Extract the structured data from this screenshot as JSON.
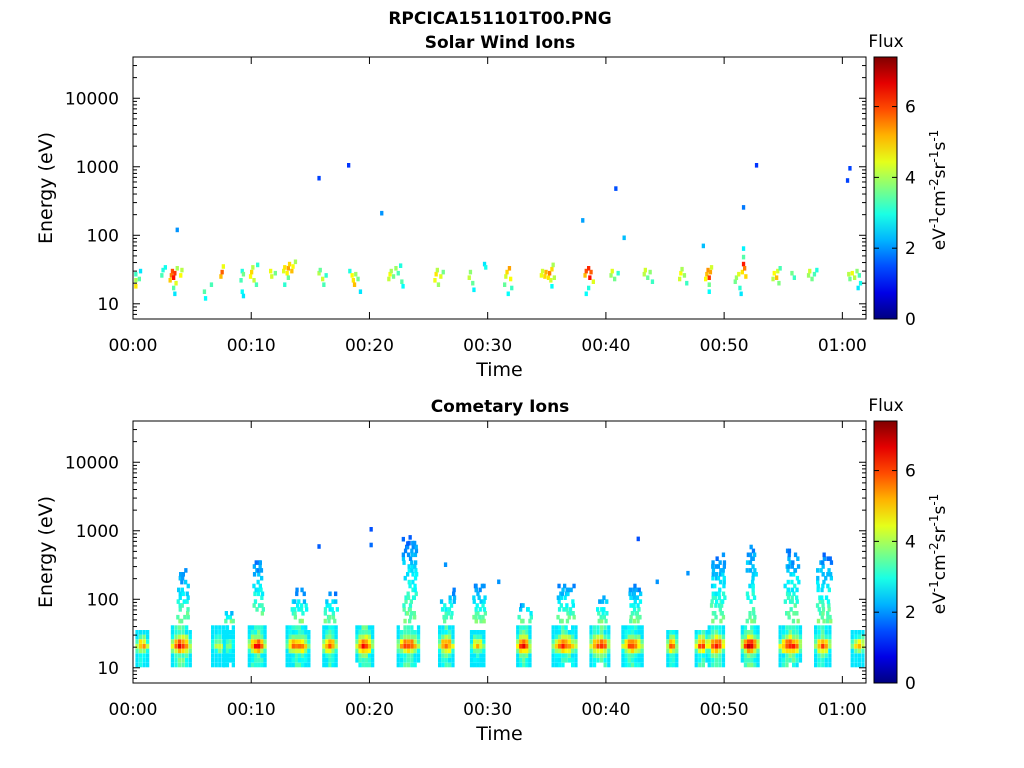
{
  "figure_title": "RPCICA151101T00.PNG",
  "chart_data": [
    {
      "type": "heatmap",
      "title": "Solar Wind Ions",
      "xlabel": "Time",
      "ylabel": "Energy (eV)",
      "x_ticks": [
        "00:00",
        "00:10",
        "00:20",
        "00:30",
        "00:40",
        "00:50",
        "01:00"
      ],
      "y_ticks": [
        "10",
        "100",
        "1000",
        "10000"
      ],
      "y_scale": "log",
      "ylim": [
        6,
        40000
      ],
      "xlim": [
        "00:00",
        "01:02"
      ],
      "colorbar": {
        "label": "Flux",
        "unit_base": [
          "eV",
          "cm",
          "sr",
          "s"
        ],
        "unit_exp": [
          "-1",
          "-2",
          "-1",
          "-1"
        ],
        "ticks": [
          "0",
          "2",
          "4",
          "6"
        ],
        "range": [
          0,
          7.4
        ]
      },
      "points": [
        [
          0.1,
          18,
          4.8
        ],
        [
          0.1,
          22,
          4.0
        ],
        [
          0.1,
          27,
          3.2
        ],
        [
          0.4,
          23,
          3.4
        ],
        [
          0.5,
          30,
          2.6
        ],
        [
          2.3,
          26,
          3.3
        ],
        [
          2.4,
          31,
          3.0
        ],
        [
          2.6,
          34,
          2.9
        ],
        [
          3.0,
          22,
          5.0
        ],
        [
          3.1,
          26,
          5.6
        ],
        [
          3.2,
          30,
          5.9
        ],
        [
          3.3,
          24,
          6.4
        ],
        [
          3.4,
          28,
          6.1
        ],
        [
          3.5,
          20,
          4.4
        ],
        [
          3.6,
          33,
          4.0
        ],
        [
          3.3,
          17,
          3.4
        ],
        [
          3.4,
          14,
          2.6
        ],
        [
          3.6,
          120,
          2.0
        ],
        [
          3.9,
          26,
          4.6
        ],
        [
          4.0,
          31,
          4.1
        ],
        [
          5.9,
          15,
          3.4
        ],
        [
          6.0,
          12,
          2.8
        ],
        [
          6.5,
          19,
          3.3
        ],
        [
          7.3,
          25,
          5.1
        ],
        [
          7.4,
          29,
          5.8
        ],
        [
          7.5,
          35,
          4.5
        ],
        [
          9.0,
          22,
          3.3
        ],
        [
          9.1,
          30,
          3.0
        ],
        [
          9.2,
          27,
          3.6
        ],
        [
          9.1,
          15,
          2.8
        ],
        [
          9.2,
          13,
          2.6
        ],
        [
          9.8,
          25,
          4.6
        ],
        [
          9.9,
          29,
          4.9
        ],
        [
          10.0,
          34,
          4.1
        ],
        [
          10.1,
          22,
          4.2
        ],
        [
          10.3,
          19,
          3.3
        ],
        [
          10.4,
          37,
          3.1
        ],
        [
          11.5,
          30,
          4.5
        ],
        [
          11.6,
          25,
          4.3
        ],
        [
          11.9,
          28,
          3.6
        ],
        [
          12.6,
          30,
          4.4
        ],
        [
          12.7,
          34,
          4.8
        ],
        [
          12.9,
          28,
          4.7
        ],
        [
          13.0,
          33,
          5.3
        ],
        [
          13.1,
          38,
          4.9
        ],
        [
          13.3,
          30,
          5.1
        ],
        [
          13.4,
          35,
          4.6
        ],
        [
          13.6,
          41,
          4.0
        ],
        [
          13.0,
          24,
          3.5
        ],
        [
          12.7,
          19,
          3.1
        ],
        [
          15.6,
          28,
          4.1
        ],
        [
          15.7,
          31,
          3.5
        ],
        [
          15.6,
          680,
          1.4
        ],
        [
          15.9,
          23,
          4.3
        ],
        [
          16.0,
          19,
          3.3
        ],
        [
          16.2,
          26,
          3.1
        ],
        [
          18.1,
          1050,
          1.3
        ],
        [
          18.2,
          30,
          3.0
        ],
        [
          18.4,
          26,
          4.6
        ],
        [
          18.5,
          22,
          4.8
        ],
        [
          18.6,
          19,
          5.1
        ],
        [
          18.7,
          27,
          3.9
        ],
        [
          18.9,
          23,
          3.6
        ],
        [
          19.1,
          15,
          2.6
        ],
        [
          20.9,
          210,
          2.0
        ],
        [
          21.5,
          23,
          4.2
        ],
        [
          21.6,
          27,
          4.6
        ],
        [
          21.7,
          30,
          4.0
        ],
        [
          21.9,
          25,
          3.6
        ],
        [
          22.1,
          33,
          3.9
        ],
        [
          22.3,
          28,
          3.3
        ],
        [
          22.5,
          36,
          3.0
        ],
        [
          22.6,
          21,
          3.4
        ],
        [
          22.7,
          18,
          2.8
        ],
        [
          25.4,
          22,
          4.5
        ],
        [
          25.5,
          27,
          4.8
        ],
        [
          25.6,
          31,
          4.1
        ],
        [
          25.7,
          19,
          3.9
        ],
        [
          25.9,
          25,
          4.4
        ],
        [
          26.1,
          29,
          3.6
        ],
        [
          28.3,
          24,
          4.2
        ],
        [
          28.4,
          29,
          3.8
        ],
        [
          28.6,
          20,
          3.5
        ],
        [
          28.7,
          16,
          2.7
        ],
        [
          29.6,
          38,
          2.6
        ],
        [
          29.7,
          34,
          2.9
        ],
        [
          31.3,
          19,
          3.5
        ],
        [
          31.4,
          25,
          4.3
        ],
        [
          31.5,
          29,
          4.9
        ],
        [
          31.7,
          33,
          5.3
        ],
        [
          31.8,
          23,
          4.6
        ],
        [
          31.9,
          17,
          3.2
        ],
        [
          31.6,
          14,
          2.8
        ],
        [
          34.4,
          26,
          4.5
        ],
        [
          34.5,
          30,
          4.3
        ],
        [
          34.7,
          25,
          4.9
        ],
        [
          34.8,
          29,
          5.2
        ],
        [
          35.0,
          24,
          4.8
        ],
        [
          35.1,
          28,
          5.6
        ],
        [
          35.3,
          32,
          4.9
        ],
        [
          35.4,
          37,
          4.0
        ],
        [
          35.2,
          22,
          4.3
        ],
        [
          35.5,
          24,
          4.1
        ],
        [
          35.3,
          18,
          2.8
        ],
        [
          37.9,
          165,
          2.1
        ],
        [
          38.1,
          26,
          5.1
        ],
        [
          38.2,
          30,
          5.9
        ],
        [
          38.4,
          33,
          6.2
        ],
        [
          38.5,
          24,
          6.4
        ],
        [
          38.6,
          29,
          5.8
        ],
        [
          38.8,
          21,
          4.4
        ],
        [
          38.4,
          17,
          3.0
        ],
        [
          38.2,
          14,
          2.8
        ],
        [
          40.3,
          26,
          3.9
        ],
        [
          40.4,
          30,
          4.4
        ],
        [
          40.6,
          23,
          3.6
        ],
        [
          40.7,
          480,
          1.5
        ],
        [
          40.9,
          28,
          3.1
        ],
        [
          41.4,
          92,
          2.3
        ],
        [
          43.1,
          27,
          4.1
        ],
        [
          43.2,
          31,
          4.3
        ],
        [
          43.4,
          24,
          3.5
        ],
        [
          43.6,
          29,
          3.8
        ],
        [
          43.8,
          21,
          3.2
        ],
        [
          46.1,
          23,
          4.3
        ],
        [
          46.2,
          28,
          4.6
        ],
        [
          46.3,
          32,
          4.0
        ],
        [
          46.5,
          26,
          3.9
        ],
        [
          46.7,
          20,
          3.2
        ],
        [
          48.1,
          70,
          2.3
        ],
        [
          48.3,
          23,
          4.6
        ],
        [
          48.4,
          27,
          5.1
        ],
        [
          48.5,
          31,
          5.4
        ],
        [
          48.6,
          24,
          6.1
        ],
        [
          48.7,
          29,
          5.3
        ],
        [
          48.8,
          34,
          4.3
        ],
        [
          48.6,
          19,
          3.6
        ],
        [
          48.6,
          15,
          2.8
        ],
        [
          50.8,
          21,
          3.6
        ],
        [
          50.9,
          24,
          3.9
        ],
        [
          51.1,
          27,
          4.4
        ],
        [
          51.2,
          17,
          3.1
        ],
        [
          51.4,
          29,
          4.8
        ],
        [
          51.5,
          38,
          6.3
        ],
        [
          51.6,
          33,
          5.6
        ],
        [
          51.5,
          48,
          3.4
        ],
        [
          51.5,
          64,
          2.7
        ],
        [
          51.5,
          255,
          1.8
        ],
        [
          51.3,
          14,
          2.6
        ],
        [
          51.7,
          25,
          4.9
        ],
        [
          52.6,
          1050,
          1.3
        ],
        [
          54.0,
          23,
          4.1
        ],
        [
          54.1,
          28,
          4.6
        ],
        [
          54.3,
          24,
          5.1
        ],
        [
          54.4,
          30,
          4.3
        ],
        [
          54.5,
          20,
          3.7
        ],
        [
          54.6,
          33,
          3.3
        ],
        [
          55.6,
          28,
          3.6
        ],
        [
          55.8,
          24,
          3.2
        ],
        [
          57.0,
          26,
          3.9
        ],
        [
          57.1,
          30,
          4.3
        ],
        [
          57.3,
          23,
          3.6
        ],
        [
          57.5,
          27,
          3.3
        ],
        [
          57.7,
          31,
          3.0
        ],
        [
          60.3,
          630,
          1.4
        ],
        [
          60.5,
          950,
          1.4
        ],
        [
          60.4,
          27,
          4.1
        ],
        [
          60.5,
          23,
          3.6
        ],
        [
          60.7,
          28,
          4.5
        ],
        [
          60.9,
          24,
          4.1
        ],
        [
          61.1,
          30,
          3.8
        ],
        [
          61.3,
          26,
          3.3
        ],
        [
          61.4,
          20,
          2.9
        ],
        [
          61.2,
          17,
          2.6
        ]
      ]
    },
    {
      "type": "heatmap",
      "title": "Cometary Ions",
      "xlabel": "Time",
      "ylabel": "Energy (eV)",
      "x_ticks": [
        "00:00",
        "00:10",
        "00:20",
        "00:30",
        "00:40",
        "00:50",
        "01:00"
      ],
      "y_ticks": [
        "10",
        "100",
        "1000",
        "10000"
      ],
      "y_scale": "log",
      "ylim": [
        6,
        40000
      ],
      "xlim": [
        "00:00",
        "01:02"
      ],
      "colorbar": {
        "label": "Flux",
        "unit_base": [
          "eV",
          "cm",
          "sr",
          "s"
        ],
        "unit_exp": [
          "-1",
          "-2",
          "-1",
          "-1"
        ],
        "ticks": [
          "0",
          "2",
          "4",
          "6"
        ],
        "range": [
          0,
          7.4
        ]
      },
      "bursts": [
        {
          "t": 0.2,
          "w": 1.2,
          "peak": 5.6,
          "top": 38,
          "plume": 0
        },
        {
          "t": 3.2,
          "w": 1.8,
          "peak": 6.8,
          "top": 42,
          "plume": 270
        },
        {
          "t": 6.6,
          "w": 1.5,
          "peak": 4.6,
          "top": 40,
          "plume": 0
        },
        {
          "t": 7.6,
          "w": 1.0,
          "peak": 4.2,
          "top": 45,
          "plume": 70
        },
        {
          "t": 9.7,
          "w": 1.6,
          "peak": 6.7,
          "top": 45,
          "plume": 390
        },
        {
          "t": 12.9,
          "w": 2.1,
          "peak": 6.3,
          "top": 45,
          "plume": 140
        },
        {
          "t": 16.0,
          "w": 1.3,
          "peak": 6.1,
          "top": 42,
          "plume": 130
        },
        {
          "t": 18.8,
          "w": 1.6,
          "peak": 6.7,
          "top": 45,
          "plume": 0
        },
        {
          "t": 22.3,
          "w": 2.0,
          "peak": 6.5,
          "top": 45,
          "plume": 800
        },
        {
          "t": 25.8,
          "w": 1.4,
          "peak": 6.3,
          "top": 40,
          "plume": 140
        },
        {
          "t": 28.5,
          "w": 1.3,
          "peak": 5.3,
          "top": 38,
          "plume": 160
        },
        {
          "t": 32.4,
          "w": 1.3,
          "peak": 6.8,
          "top": 45,
          "plume": 90
        },
        {
          "t": 35.4,
          "w": 2.2,
          "peak": 6.4,
          "top": 45,
          "plume": 170
        },
        {
          "t": 38.6,
          "w": 1.8,
          "peak": 6.7,
          "top": 45,
          "plume": 120
        },
        {
          "t": 41.3,
          "w": 1.9,
          "peak": 6.3,
          "top": 42,
          "plume": 160
        },
        {
          "t": 45.1,
          "w": 1.0,
          "peak": 6.1,
          "top": 38,
          "plume": 0
        },
        {
          "t": 47.5,
          "w": 1.2,
          "peak": 6.3,
          "top": 38,
          "plume": 0
        },
        {
          "t": 48.6,
          "w": 1.5,
          "peak": 6.9,
          "top": 45,
          "plume": 450
        },
        {
          "t": 51.4,
          "w": 1.6,
          "peak": 7.0,
          "top": 45,
          "plume": 650
        },
        {
          "t": 54.6,
          "w": 2.0,
          "peak": 6.7,
          "top": 45,
          "plume": 560
        },
        {
          "t": 57.6,
          "w": 1.5,
          "peak": 6.1,
          "top": 42,
          "plume": 450
        },
        {
          "t": 60.7,
          "w": 1.5,
          "peak": 5.3,
          "top": 38,
          "plume": 0
        }
      ],
      "scattered_points": [
        [
          20.0,
          1050,
          1.5
        ],
        [
          20.0,
          620,
          1.7
        ],
        [
          23.1,
          650,
          1.6
        ],
        [
          23.3,
          800,
          1.6
        ],
        [
          26.3,
          320,
          2.0
        ],
        [
          15.6,
          590,
          1.6
        ],
        [
          42.6,
          760,
          1.5
        ],
        [
          44.2,
          180,
          2.0
        ],
        [
          46.8,
          240,
          2.0
        ],
        [
          30.8,
          180,
          2.0
        ],
        [
          6.7,
          5.5,
          2.6
        ],
        [
          19.3,
          5.8,
          2.8
        ],
        [
          26.0,
          5.8,
          2.6
        ]
      ]
    }
  ]
}
